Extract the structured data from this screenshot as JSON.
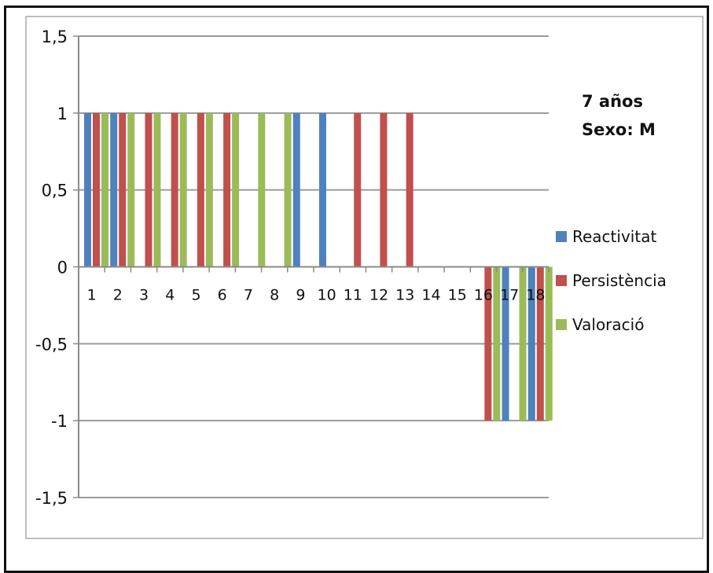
{
  "chart_data": {
    "type": "bar",
    "title": "",
    "xlabel": "",
    "ylabel": "",
    "annotation": [
      "7 años",
      "Sexo: M"
    ],
    "categories": [
      "1",
      "2",
      "3",
      "4",
      "5",
      "6",
      "7",
      "8",
      "9",
      "10",
      "11",
      "12",
      "13",
      "14",
      "15",
      "16",
      "17",
      "18"
    ],
    "ylim": [
      -1.5,
      1.5
    ],
    "yticks": [
      1.5,
      1,
      0.5,
      0,
      -0.5,
      -1,
      -1.5
    ],
    "ytick_labels": [
      "1,5",
      "1",
      "0,5",
      "0",
      "-0,5",
      "-1",
      "-1,5"
    ],
    "grid": true,
    "legend_position": "right",
    "series": [
      {
        "name": "Reactivitat",
        "color": "#4F81BD",
        "values": [
          1,
          1,
          0,
          0,
          0,
          0,
          0,
          0,
          1,
          1,
          0,
          0,
          0,
          0,
          0,
          0,
          -1,
          -1
        ]
      },
      {
        "name": "Persistència",
        "color": "#C0504D",
        "values": [
          1,
          1,
          1,
          1,
          1,
          1,
          0,
          0,
          0,
          0,
          1,
          1,
          1,
          0,
          0,
          -1,
          0,
          -1
        ]
      },
      {
        "name": "Valoració",
        "color": "#9BBB59",
        "values": [
          1,
          1,
          1,
          1,
          1,
          1,
          1,
          1,
          0,
          0,
          0,
          0,
          0,
          0,
          0,
          -1,
          -1,
          -1
        ]
      }
    ]
  }
}
